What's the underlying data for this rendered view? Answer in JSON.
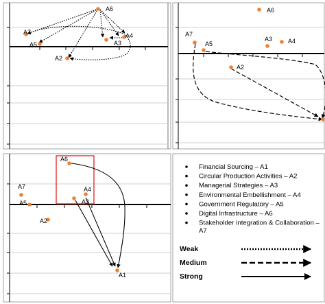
{
  "point_labels": {
    "a1": "A1",
    "a2": "A2",
    "a3": "A3",
    "a4": "A4",
    "a5": "A5",
    "a6": "A6",
    "a7": "A7"
  },
  "legend": {
    "items": [
      "Financial Sourcing – A1",
      "Circular Production Activities – A2",
      "Managerial Strategies – A3",
      "Environmental Embellishment – A4",
      "Government Regulatory – A5",
      "Digital Infrastructure – A6"
    ],
    "item7_line1": "Stakeholder integration & Collaboration –",
    "item7_line2": "A7",
    "line_types": {
      "weak": "Weak",
      "medium": "Medium",
      "strong": "Strong"
    }
  },
  "colors": {
    "point": "#f07f2e",
    "highlight": "#e03030",
    "grid": "#bfbfbf",
    "axis": "#000000",
    "frame": "#8c8c8c"
  }
}
